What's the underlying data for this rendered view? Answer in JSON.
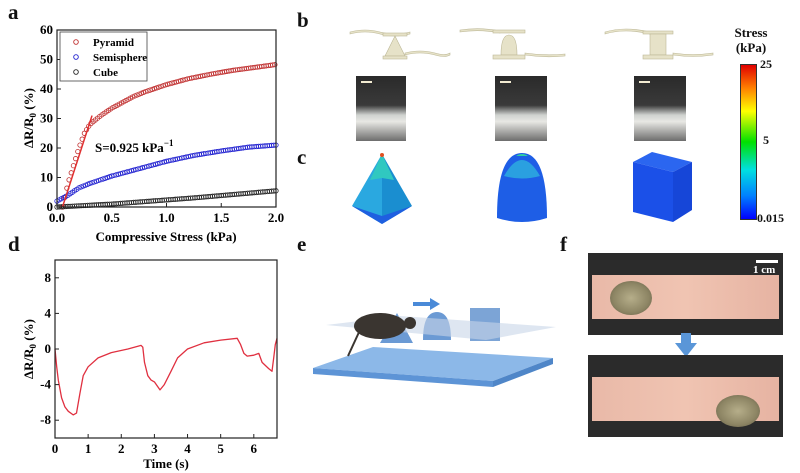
{
  "panels": {
    "a": {
      "label": "a"
    },
    "b": {
      "label": "b"
    },
    "c": {
      "label": "c"
    },
    "d": {
      "label": "d"
    },
    "e": {
      "label": "e"
    },
    "f": {
      "label": "f",
      "scale_bar": "1 cm"
    }
  },
  "colorbar": {
    "title_line1": "Stress",
    "title_line2": "(kPa)",
    "ticks": [
      "25",
      "5",
      "0.015"
    ],
    "colors": [
      "#e00000",
      "#ffff00",
      "#00e000",
      "#00e0e0",
      "#0000ff"
    ]
  },
  "chart_data": [
    {
      "id": "a",
      "type": "scatter",
      "xlabel": "Compressive Stress (kPa)",
      "ylabel": "ΔR/R0 (%)",
      "ylabel_main": "ΔR/R",
      "ylabel_sub": "0",
      "ylabel_unit": " (%)",
      "xlim": [
        0,
        2.0
      ],
      "ylim": [
        0,
        60
      ],
      "xticks": [
        "0.0",
        "0.5",
        "1.0",
        "1.5",
        "2.0"
      ],
      "yticks": [
        "0",
        "10",
        "20",
        "30",
        "40",
        "50",
        "60"
      ],
      "legend": "top-left",
      "annotation": {
        "text": "S=0.925 kPa",
        "sup": "−1"
      },
      "fit_line": {
        "x": [
          0.05,
          0.32
        ],
        "y": [
          0,
          31
        ],
        "color": "#e03030"
      },
      "series": [
        {
          "name": "Pyramid",
          "color": "#c03030",
          "x": [
            0.05,
            0.1,
            0.15,
            0.2,
            0.25,
            0.3,
            0.4,
            0.5,
            0.6,
            0.7,
            0.8,
            1.0,
            1.2,
            1.4,
            1.6,
            1.8,
            2.0
          ],
          "y": [
            0,
            8,
            14,
            20,
            25,
            28,
            31,
            33.5,
            35.5,
            37.5,
            39,
            41.5,
            43.5,
            45,
            46.3,
            47.3,
            48.3
          ]
        },
        {
          "name": "Semisphere",
          "color": "#2020d0",
          "x": [
            0.0,
            0.1,
            0.2,
            0.3,
            0.5,
            0.75,
            1.0,
            1.25,
            1.5,
            1.75,
            2.0
          ],
          "y": [
            2,
            4,
            6.5,
            8,
            10.5,
            13,
            15.5,
            17.5,
            19,
            20.3,
            21
          ]
        },
        {
          "name": "Cube",
          "color": "#222222",
          "x": [
            0.0,
            0.25,
            0.5,
            0.75,
            1.0,
            1.25,
            1.5,
            1.75,
            2.0
          ],
          "y": [
            0,
            0.5,
            1,
            1.7,
            2.4,
            3.1,
            3.9,
            4.7,
            5.5
          ]
        }
      ]
    },
    {
      "id": "d",
      "type": "line",
      "xlabel": "Time (s)",
      "ylabel": "ΔR/R0 (%)",
      "ylabel_main": "ΔR/R",
      "ylabel_sub": "0",
      "ylabel_unit": " (%)",
      "xlim": [
        0,
        6.7
      ],
      "ylim": [
        -10,
        10
      ],
      "xticks": [
        "0",
        "1",
        "2",
        "3",
        "4",
        "5",
        "6"
      ],
      "yticks": [
        "-8",
        "-4",
        "0",
        "4",
        "8"
      ],
      "series": [
        {
          "color": "#e03040",
          "x": [
            0,
            0.05,
            0.1,
            0.2,
            0.3,
            0.4,
            0.55,
            0.65,
            0.75,
            0.85,
            1.0,
            1.3,
            1.7,
            2.2,
            2.6,
            2.65,
            2.7,
            2.8,
            2.9,
            3.0,
            3.17,
            3.3,
            3.5,
            3.7,
            4.0,
            4.5,
            5.0,
            5.5,
            5.6,
            5.7,
            5.8,
            6.0,
            6.15,
            6.25,
            6.45,
            6.55,
            6.6,
            6.65,
            6.7
          ],
          "y": [
            0,
            -2,
            -3.5,
            -5.5,
            -6.5,
            -7,
            -7.4,
            -7.2,
            -5,
            -3,
            -2,
            -1,
            -0.4,
            0,
            0.4,
            0.2,
            -1.5,
            -3,
            -3.5,
            -3.7,
            -4.6,
            -4,
            -2.5,
            -1,
            0,
            0.7,
            1,
            1.2,
            0.5,
            -0.5,
            -0.8,
            -0.7,
            -0.5,
            -1.5,
            -2.2,
            -2.5,
            -1,
            0.5,
            1.2
          ]
        }
      ]
    }
  ]
}
